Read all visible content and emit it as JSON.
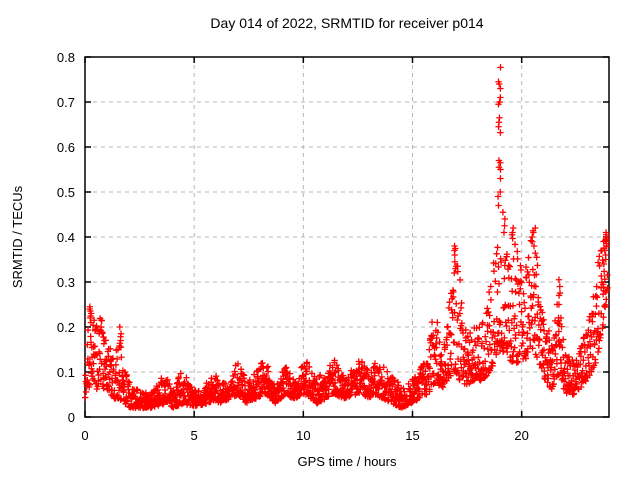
{
  "figure": {
    "background": "#ffffff",
    "border_color": "#000000",
    "text_color": "#000000"
  },
  "chart_data": {
    "type": "scatter",
    "title": "Day 014 of 2022, SRMTID for receiver p014",
    "xlabel": "GPS time / hours",
    "ylabel": "SRMTID / TECUs",
    "xlim": [
      0,
      24
    ],
    "ylim": [
      0,
      0.8
    ],
    "xticks": [
      {
        "value": 0,
        "label": "0"
      },
      {
        "value": 5,
        "label": "5"
      },
      {
        "value": 10,
        "label": "10"
      },
      {
        "value": 15,
        "label": "15"
      },
      {
        "value": 20,
        "label": "20"
      }
    ],
    "yticks": [
      {
        "value": 0.0,
        "label": "0"
      },
      {
        "value": 0.1,
        "label": "0.1"
      },
      {
        "value": 0.2,
        "label": "0.2"
      },
      {
        "value": 0.3,
        "label": "0.3"
      },
      {
        "value": 0.4,
        "label": "0.4"
      },
      {
        "value": 0.5,
        "label": "0.5"
      },
      {
        "value": 0.6,
        "label": "0.6"
      },
      {
        "value": 0.7,
        "label": "0.7"
      },
      {
        "value": 0.8,
        "label": "0.8"
      }
    ],
    "grid": true,
    "grid_color": "#b4b4b4",
    "legend": "none",
    "marker": "plus",
    "marker_color": "#ff0000",
    "series_name": "SRMTID",
    "sampling": {
      "seed": 20220141,
      "points_per_hour": 88,
      "x_start": 0.02,
      "x_end": 23.93,
      "x_jitter": 0.012,
      "shape_power": 1.5
    },
    "band_envelope": [
      [
        0.02,
        0.04,
        0.13
      ],
      [
        0.15,
        0.06,
        0.22
      ],
      [
        0.3,
        0.08,
        0.25
      ],
      [
        0.5,
        0.06,
        0.2
      ],
      [
        0.7,
        0.07,
        0.23
      ],
      [
        0.9,
        0.06,
        0.19
      ],
      [
        1.1,
        0.05,
        0.17
      ],
      [
        1.35,
        0.04,
        0.13
      ],
      [
        1.6,
        0.04,
        0.2
      ],
      [
        1.8,
        0.03,
        0.12
      ],
      [
        2.1,
        0.02,
        0.07
      ],
      [
        2.5,
        0.02,
        0.06
      ],
      [
        3.0,
        0.02,
        0.05
      ],
      [
        3.4,
        0.025,
        0.08
      ],
      [
        3.7,
        0.03,
        0.1
      ],
      [
        4.0,
        0.02,
        0.06
      ],
      [
        4.5,
        0.03,
        0.11
      ],
      [
        4.8,
        0.025,
        0.07
      ],
      [
        5.2,
        0.025,
        0.06
      ],
      [
        5.6,
        0.03,
        0.08
      ],
      [
        5.9,
        0.035,
        0.11
      ],
      [
        6.2,
        0.03,
        0.07
      ],
      [
        6.6,
        0.04,
        0.09
      ],
      [
        7.0,
        0.05,
        0.13
      ],
      [
        7.4,
        0.03,
        0.08
      ],
      [
        7.8,
        0.04,
        0.1
      ],
      [
        8.2,
        0.05,
        0.13
      ],
      [
        8.7,
        0.03,
        0.08
      ],
      [
        9.2,
        0.05,
        0.12
      ],
      [
        9.6,
        0.04,
        0.08
      ],
      [
        10.1,
        0.05,
        0.13
      ],
      [
        10.6,
        0.03,
        0.09
      ],
      [
        11.0,
        0.04,
        0.1
      ],
      [
        11.45,
        0.05,
        0.13
      ],
      [
        11.9,
        0.04,
        0.09
      ],
      [
        12.3,
        0.05,
        0.11
      ],
      [
        12.6,
        0.05,
        0.13
      ],
      [
        13.0,
        0.04,
        0.1
      ],
      [
        13.3,
        0.05,
        0.13
      ],
      [
        13.7,
        0.04,
        0.11
      ],
      [
        14.1,
        0.03,
        0.09
      ],
      [
        14.5,
        0.02,
        0.07
      ],
      [
        14.9,
        0.03,
        0.08
      ],
      [
        15.3,
        0.04,
        0.1
      ],
      [
        15.7,
        0.05,
        0.14
      ],
      [
        16.0,
        0.07,
        0.26
      ],
      [
        16.3,
        0.06,
        0.16
      ],
      [
        16.6,
        0.08,
        0.2
      ],
      [
        16.95,
        0.1,
        0.39
      ],
      [
        17.2,
        0.08,
        0.3
      ],
      [
        17.5,
        0.07,
        0.18
      ],
      [
        17.8,
        0.08,
        0.2
      ],
      [
        18.1,
        0.08,
        0.2
      ],
      [
        18.4,
        0.09,
        0.24
      ],
      [
        18.65,
        0.11,
        0.32
      ],
      [
        18.9,
        0.14,
        0.42
      ],
      [
        19.1,
        0.15,
        0.42
      ],
      [
        19.35,
        0.13,
        0.38
      ],
      [
        19.6,
        0.12,
        0.4
      ],
      [
        19.9,
        0.12,
        0.35
      ],
      [
        20.2,
        0.13,
        0.38
      ],
      [
        20.55,
        0.15,
        0.42
      ],
      [
        20.8,
        0.12,
        0.32
      ],
      [
        21.1,
        0.08,
        0.22
      ],
      [
        21.4,
        0.06,
        0.16
      ],
      [
        21.75,
        0.1,
        0.31
      ],
      [
        22.0,
        0.05,
        0.14
      ],
      [
        22.4,
        0.05,
        0.13
      ],
      [
        22.8,
        0.07,
        0.17
      ],
      [
        23.1,
        0.09,
        0.22
      ],
      [
        23.4,
        0.12,
        0.3
      ],
      [
        23.65,
        0.18,
        0.4
      ],
      [
        23.93,
        0.27,
        0.41
      ]
    ],
    "spike_columns": [
      {
        "x": 0.3,
        "x_jitter": 0.1,
        "values": [
          0.245,
          0.24,
          0.23,
          0.22
        ]
      },
      {
        "x": 1.62,
        "x_jitter": 0.03,
        "values": [
          0.2,
          0.185,
          0.17,
          0.155
        ]
      },
      {
        "x": 16.95,
        "x_jitter": 0.04,
        "values": [
          0.38,
          0.37,
          0.36,
          0.345,
          0.33,
          0.32
        ]
      },
      {
        "x": 18.98,
        "x_jitter": 0.06,
        "values": [
          0.777,
          0.745,
          0.74,
          0.73,
          0.71,
          0.7,
          0.695,
          0.665,
          0.655,
          0.645,
          0.632,
          0.57,
          0.565,
          0.555,
          0.55,
          0.53,
          0.5,
          0.49,
          0.47
        ]
      },
      {
        "x": 19.2,
        "x_jitter": 0.08,
        "values": [
          0.455,
          0.44,
          0.425,
          0.41
        ]
      },
      {
        "x": 19.55,
        "x_jitter": 0.07,
        "values": [
          0.42,
          0.41,
          0.405
        ]
      },
      {
        "x": 20.55,
        "x_jitter": 0.08,
        "values": [
          0.42,
          0.41,
          0.4,
          0.39,
          0.38
        ]
      },
      {
        "x": 21.75,
        "x_jitter": 0.05,
        "values": [
          0.305,
          0.29,
          0.27,
          0.25,
          0.22,
          0.19,
          0.16
        ]
      },
      {
        "x": 23.8,
        "x_jitter": 0.1,
        "values": [
          0.41,
          0.405,
          0.4,
          0.395,
          0.39,
          0.385,
          0.38,
          0.375,
          0.37,
          0.36,
          0.35,
          0.34
        ]
      }
    ]
  }
}
